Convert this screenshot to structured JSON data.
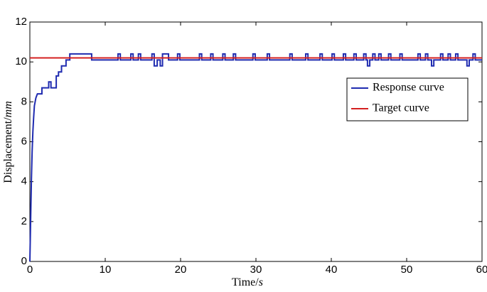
{
  "chart_data": {
    "type": "line",
    "xlabel": "Time/",
    "xlabel_unit": "s",
    "ylabel": "Displacement/",
    "ylabel_unit": "mm",
    "xlim": [
      0,
      60
    ],
    "xticks": [
      0,
      10,
      20,
      30,
      40,
      50,
      60
    ],
    "ylim": [
      0,
      12
    ],
    "yticks": [
      0,
      2,
      4,
      6,
      8,
      10,
      12
    ],
    "legend": "upper right",
    "series": [
      {
        "name": "Response curve",
        "color": "#1f2bb0",
        "x": [
          0,
          0.1,
          0.2,
          0.3,
          0.4,
          0.5,
          0.6,
          0.8,
          1.0,
          1.6,
          1.6,
          2.5,
          2.5,
          2.8,
          2.8,
          3.5,
          3.5,
          3.8,
          3.8,
          4.2,
          4.2,
          4.8,
          4.8,
          5.3,
          5.3,
          8.2,
          8.2,
          11.7,
          11.7,
          12.0,
          12.0,
          13.4,
          13.4,
          13.7,
          13.7,
          14.4,
          14.4,
          14.7,
          14.7,
          16.2,
          16.2,
          16.5,
          16.5,
          16.9,
          16.9,
          17.3,
          17.3,
          17.6,
          17.6,
          18.4,
          18.4,
          19.6,
          19.6,
          19.9,
          19.9,
          22.5,
          22.5,
          22.8,
          22.8,
          24.0,
          24.0,
          24.3,
          24.3,
          25.6,
          25.6,
          25.9,
          25.9,
          27.0,
          27.0,
          27.3,
          27.3,
          29.6,
          29.6,
          29.9,
          29.9,
          31.5,
          31.5,
          31.8,
          31.8,
          34.5,
          34.5,
          34.8,
          34.8,
          36.6,
          36.6,
          36.9,
          36.9,
          38.5,
          38.5,
          38.8,
          38.8,
          40.1,
          40.1,
          40.4,
          40.4,
          41.6,
          41.6,
          41.9,
          41.9,
          43.0,
          43.0,
          43.3,
          43.3,
          44.3,
          44.3,
          44.6,
          44.6,
          44.8,
          44.8,
          45.1,
          45.1,
          45.5,
          45.5,
          45.8,
          45.8,
          46.3,
          46.3,
          46.6,
          46.6,
          47.6,
          47.6,
          47.9,
          47.9,
          49.1,
          49.1,
          49.4,
          49.4,
          51.5,
          51.5,
          51.8,
          51.8,
          52.5,
          52.5,
          52.8,
          52.8,
          53.3,
          53.3,
          53.6,
          53.6,
          54.5,
          54.5,
          54.8,
          54.8,
          55.5,
          55.5,
          55.8,
          55.8,
          56.5,
          56.5,
          56.8,
          56.8,
          58.0,
          58.0,
          58.3,
          58.3,
          58.8,
          58.8,
          59.1,
          59.1,
          60
        ],
        "values": [
          0,
          2,
          4,
          5.5,
          6.5,
          7.2,
          7.8,
          8.2,
          8.4,
          8.4,
          8.7,
          8.7,
          9.0,
          9.0,
          8.7,
          8.7,
          9.3,
          9.3,
          9.5,
          9.5,
          9.8,
          9.8,
          10.1,
          10.1,
          10.4,
          10.4,
          10.1,
          10.1,
          10.4,
          10.4,
          10.1,
          10.1,
          10.4,
          10.4,
          10.1,
          10.1,
          10.4,
          10.4,
          10.1,
          10.1,
          10.4,
          10.4,
          9.8,
          9.8,
          10.1,
          10.1,
          9.8,
          9.8,
          10.4,
          10.4,
          10.1,
          10.1,
          10.4,
          10.4,
          10.1,
          10.1,
          10.4,
          10.4,
          10.1,
          10.1,
          10.4,
          10.4,
          10.1,
          10.1,
          10.4,
          10.4,
          10.1,
          10.1,
          10.4,
          10.4,
          10.1,
          10.1,
          10.4,
          10.4,
          10.1,
          10.1,
          10.4,
          10.4,
          10.1,
          10.1,
          10.4,
          10.4,
          10.1,
          10.1,
          10.4,
          10.4,
          10.1,
          10.1,
          10.4,
          10.4,
          10.1,
          10.1,
          10.4,
          10.4,
          10.1,
          10.1,
          10.4,
          10.4,
          10.1,
          10.1,
          10.4,
          10.4,
          10.1,
          10.1,
          10.4,
          10.4,
          10.1,
          10.1,
          9.8,
          9.8,
          10.1,
          10.1,
          10.4,
          10.4,
          10.1,
          10.1,
          10.4,
          10.4,
          10.1,
          10.1,
          10.4,
          10.4,
          10.1,
          10.1,
          10.4,
          10.4,
          10.1,
          10.1,
          10.4,
          10.4,
          10.1,
          10.1,
          10.4,
          10.4,
          10.1,
          10.1,
          9.8,
          9.8,
          10.1,
          10.1,
          10.4,
          10.4,
          10.1,
          10.1,
          10.4,
          10.4,
          10.1,
          10.1,
          10.4,
          10.4,
          10.1,
          10.1,
          9.8,
          9.8,
          10.1,
          10.1,
          10.4,
          10.4,
          10.1,
          10.1
        ]
      },
      {
        "name": "Target curve",
        "color": "#d42020",
        "x": [
          0,
          60
        ],
        "values": [
          10.2,
          10.2
        ]
      }
    ]
  }
}
